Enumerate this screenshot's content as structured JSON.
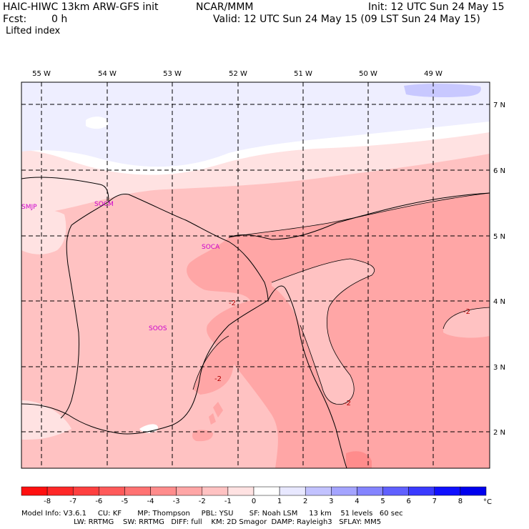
{
  "header": {
    "model": "HAIC-HIWC 13km ARW-GFS init",
    "org": "NCAR/MMM",
    "init": "Init: 12 UTC Sun 24 May 15",
    "fcst_label": "Fcst:",
    "fcst_value": "0 h",
    "valid": "Valid: 12 UTC Sun 24 May 15 (09 LST Sun 24 May 15)",
    "field": "Lifted index"
  },
  "map": {
    "lon_labels": [
      "55 W",
      "54 W",
      "53 W",
      "52 W",
      "51 W",
      "50 W",
      "49 W"
    ],
    "lat_labels": [
      "7 N",
      "6 N",
      "5 N",
      "4 N",
      "3 N",
      "2 N"
    ],
    "stations": [
      "SMJP",
      "SOCM",
      "SOCA",
      "SOOS"
    ],
    "contour_labels": [
      "-2",
      "-2",
      "-2",
      "-2"
    ]
  },
  "colorbar": {
    "ticks": [
      "-8",
      "-7",
      "-6",
      "-5",
      "-4",
      "-3",
      "-2",
      "-1",
      "0",
      "1",
      "2",
      "3",
      "4",
      "5",
      "6",
      "7",
      "8"
    ],
    "unit": "°C",
    "colors": [
      "#ff1010",
      "#ff2828",
      "#ff4040",
      "#ff5a5a",
      "#ff7272",
      "#ff8c8c",
      "#ffa6a6",
      "#ffc2c2",
      "#ffe2e2",
      "#ffffff",
      "#e8e8ff",
      "#c2c2ff",
      "#a4a4ff",
      "#8484ff",
      "#6060ff",
      "#3a3aff",
      "#1010ff",
      "#0000ee"
    ]
  },
  "footer": {
    "line1": "Model Info: V3.6.1     CU: KF       MP: Thompson     PBL: YSU       SF: Noah LSM     13 km    51 levels   60 sec",
    "line2": "                       LW: RRTMG    SW: RRTMG   DIFF: full    KM: 2D Smagor  DAMP: Rayleigh3   SFLAY: MM5"
  }
}
